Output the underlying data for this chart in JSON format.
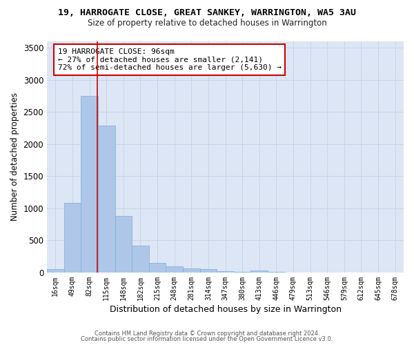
{
  "title": "19, HARROGATE CLOSE, GREAT SANKEY, WARRINGTON, WA5 3AU",
  "subtitle": "Size of property relative to detached houses in Warrington",
  "xlabel": "Distribution of detached houses by size in Warrington",
  "ylabel": "Number of detached properties",
  "categories": [
    "16sqm",
    "49sqm",
    "82sqm",
    "115sqm",
    "148sqm",
    "182sqm",
    "215sqm",
    "248sqm",
    "281sqm",
    "314sqm",
    "347sqm",
    "380sqm",
    "413sqm",
    "446sqm",
    "479sqm",
    "513sqm",
    "546sqm",
    "579sqm",
    "612sqm",
    "645sqm",
    "678sqm"
  ],
  "values": [
    50,
    1090,
    2750,
    2290,
    880,
    420,
    155,
    100,
    60,
    50,
    25,
    5,
    30,
    10,
    3,
    2,
    1,
    1,
    0,
    0,
    0
  ],
  "bar_color": "#aec6e8",
  "bar_edge_color": "#7aafd4",
  "vline_color": "#cc0000",
  "vline_xindex": 2.45,
  "annotation_text": "19 HARROGATE CLOSE: 96sqm\n← 27% of detached houses are smaller (2,141)\n72% of semi-detached houses are larger (5,630) →",
  "annotation_box_color": "#ffffff",
  "annotation_box_edge": "#cc0000",
  "ylim": [
    0,
    3600
  ],
  "yticks": [
    0,
    500,
    1000,
    1500,
    2000,
    2500,
    3000,
    3500
  ],
  "grid_color": "#c8d4e8",
  "background_color": "#dce6f5",
  "footer_line1": "Contains HM Land Registry data © Crown copyright and database right 2024.",
  "footer_line2": "Contains public sector information licensed under the Open Government Licence v3.0."
}
